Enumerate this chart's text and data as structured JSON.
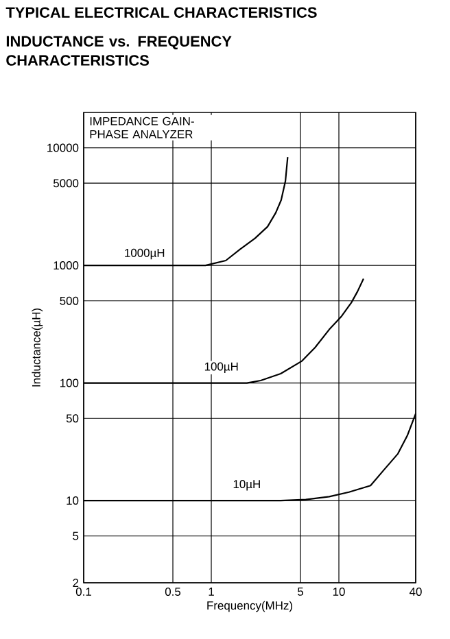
{
  "chart_data": {
    "type": "line",
    "title": "TYPICAL ELECTRICAL CHARACTERISTICS",
    "subtitle": "INDUCTANCE vs. FREQUENCY CHARACTERISTICS",
    "xlabel": "Frequency(MHz)",
    "ylabel": "Inductance(µH)",
    "log": "xy",
    "grid": true,
    "xlim": [
      0.1,
      40
    ],
    "ylim": [
      2,
      20000
    ],
    "xticks": [
      0.1,
      0.5,
      1,
      5,
      10,
      40
    ],
    "yticks": [
      2,
      5,
      10,
      50,
      100,
      500,
      1000,
      5000,
      10000
    ],
    "annotations": [
      "IMPEDANCE GAIN-PHASE ANALYZER"
    ],
    "series": [
      {
        "name": "1000µH",
        "color": "#000000",
        "x": [
          0.1,
          0.5,
          0.9,
          1.3,
          1.68,
          2.2,
          2.76,
          3.2,
          3.53,
          3.81,
          3.97
        ],
        "values": [
          1000,
          1000,
          1000,
          1100,
          1370,
          1700,
          2135,
          2800,
          3600,
          5200,
          8330
        ]
      },
      {
        "name": "100µH",
        "color": "#000000",
        "x": [
          0.1,
          1,
          1.9,
          2.44,
          3.5,
          5.1,
          6.5,
          8.4,
          10.5,
          12.5,
          14,
          15.6
        ],
        "values": [
          100,
          100,
          100,
          105,
          120,
          153,
          200,
          285,
          370,
          481,
          600,
          770
        ]
      },
      {
        "name": "10µH",
        "color": "#000000",
        "x": [
          0.1,
          1,
          3.5,
          5.5,
          8.4,
          12,
          17.7,
          22.6,
          29,
          34.5,
          40
        ],
        "values": [
          10,
          10,
          10,
          10.2,
          10.8,
          11.8,
          13.4,
          18.3,
          25,
          36,
          54.8
        ]
      }
    ]
  }
}
